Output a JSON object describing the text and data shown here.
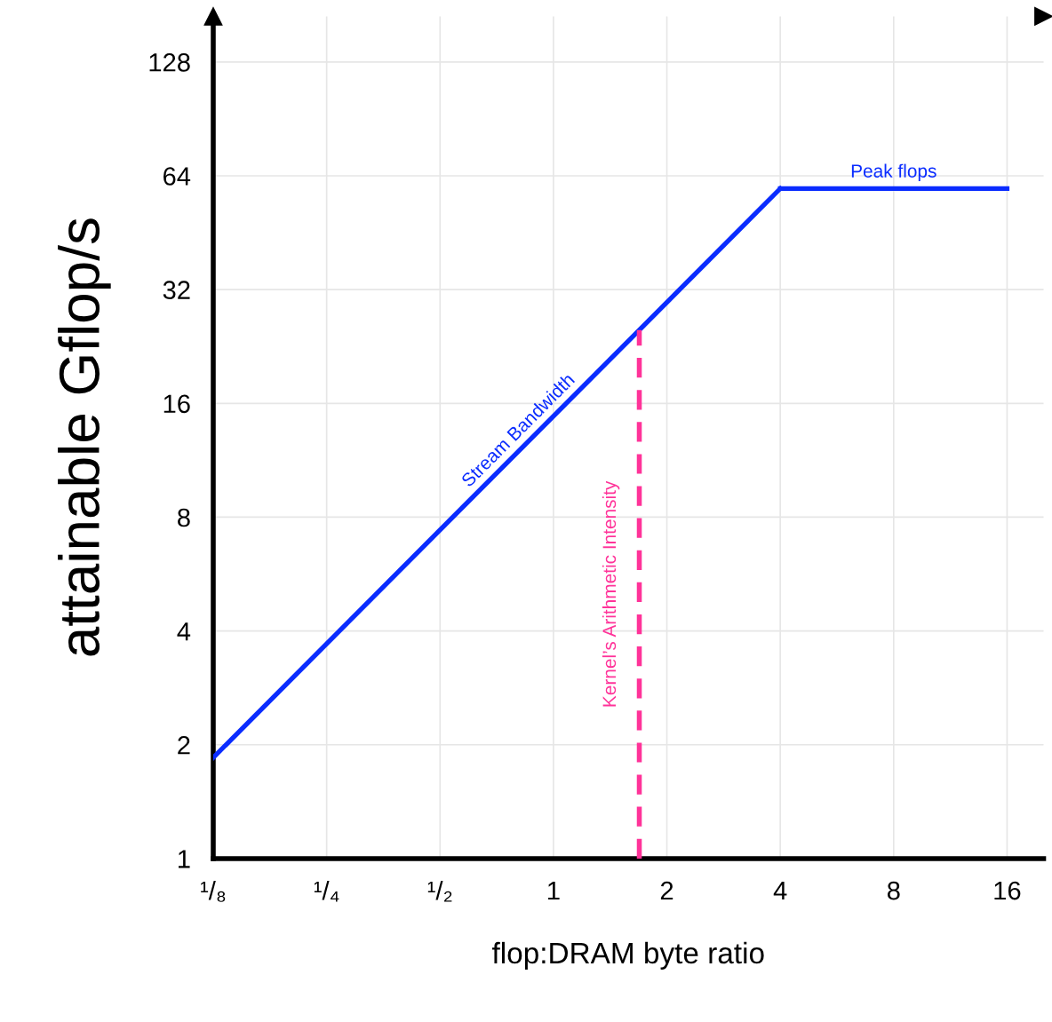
{
  "chart_data": {
    "type": "line",
    "xlabel": "flop:DRAM byte ratio",
    "ylabel": "attainable Gflop/s",
    "log": "xy",
    "xlim": [
      0.125,
      20
    ],
    "ylim": [
      1,
      169
    ],
    "xticks": [
      {
        "value": 0.125,
        "label": "¹/₈"
      },
      {
        "value": 0.25,
        "label": "¹/₄"
      },
      {
        "value": 0.5,
        "label": "¹/₂"
      },
      1,
      2,
      4,
      8,
      16
    ],
    "yticks": [
      1,
      2,
      4,
      8,
      16,
      32,
      64,
      128
    ],
    "grid": true,
    "legend": false,
    "marker": "none",
    "series": [
      {
        "name": "Stream Bandwidth",
        "color": "#0a2cff",
        "line_style": "solid",
        "x": [
          0.125,
          4
        ],
        "values": [
          1.85,
          59.2
        ]
      },
      {
        "name": "Peak flops",
        "color": "#0a2cff",
        "line_style": "solid",
        "x": [
          4,
          16
        ],
        "values": [
          59.2,
          59.2
        ]
      },
      {
        "name": "Kernel’s Arithmetic Intensity",
        "color": "#ff3399",
        "line_style": "dashed",
        "x": [
          1.69,
          1.69
        ],
        "values": [
          1,
          25
        ]
      }
    ]
  }
}
